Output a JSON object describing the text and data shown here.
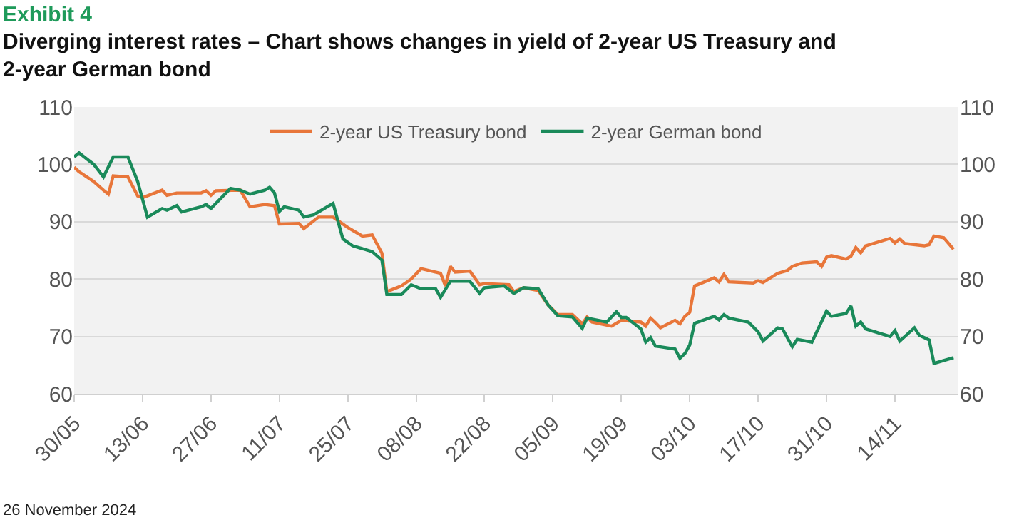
{
  "chart_data": {
    "type": "line",
    "title": "Exhibit 4",
    "subtitle": "Diverging interest rates – Chart shows changes in yield of 2-year US Treasury and 2-year German bond",
    "annotations": [
      "26 November 2024"
    ],
    "series": [
      {
        "name": "2-year US Treasury bond",
        "color": "#e8763a",
        "x": [
          "2024-05-30",
          "2024-05-31",
          "2024-06-03",
          "2024-06-05",
          "2024-06-06",
          "2024-06-07",
          "2024-06-10",
          "2024-06-12",
          "2024-06-13",
          "2024-06-17",
          "2024-06-18",
          "2024-06-20",
          "2024-06-25",
          "2024-06-26",
          "2024-06-27",
          "2024-06-28",
          "2024-07-03",
          "2024-07-05",
          "2024-07-08",
          "2024-07-10",
          "2024-07-11",
          "2024-07-15",
          "2024-07-16",
          "2024-07-19",
          "2024-07-22",
          "2024-07-25",
          "2024-07-28",
          "2024-07-30",
          "2024-08-01",
          "2024-08-02",
          "2024-08-05",
          "2024-08-07",
          "2024-08-09",
          "2024-08-13",
          "2024-08-14",
          "2024-08-15",
          "2024-08-16",
          "2024-08-19",
          "2024-08-21",
          "2024-08-22",
          "2024-08-27",
          "2024-08-28",
          "2024-08-30",
          "2024-09-02",
          "2024-09-04",
          "2024-09-06",
          "2024-09-09",
          "2024-09-11",
          "2024-09-12",
          "2024-09-13",
          "2024-09-17",
          "2024-09-19",
          "2024-09-23",
          "2024-09-24",
          "2024-09-25",
          "2024-09-26",
          "2024-09-27",
          "2024-09-30",
          "2024-10-01",
          "2024-10-02",
          "2024-10-03",
          "2024-10-04",
          "2024-10-08",
          "2024-10-09",
          "2024-10-10",
          "2024-10-11",
          "2024-10-16",
          "2024-10-17",
          "2024-10-18",
          "2024-10-21",
          "2024-10-23",
          "2024-10-24",
          "2024-10-26",
          "2024-10-29",
          "2024-10-30",
          "2024-10-31",
          "2024-11-01",
          "2024-11-04",
          "2024-11-05",
          "2024-11-06",
          "2024-11-07",
          "2024-11-08",
          "2024-11-13",
          "2024-11-14",
          "2024-11-15",
          "2024-11-16",
          "2024-11-20",
          "2024-11-21",
          "2024-11-22",
          "2024-11-24",
          "2024-11-26"
        ],
        "values": [
          99.5,
          98.7,
          97,
          95.5,
          94.8,
          98,
          97.8,
          94.5,
          94.2,
          95.5,
          94.6,
          95,
          95,
          95.4,
          94.6,
          95.4,
          95.5,
          92.6,
          93,
          92.8,
          89.6,
          89.7,
          88.8,
          90.8,
          90.8,
          89,
          87.5,
          87.7,
          84.5,
          77.8,
          78.8,
          80,
          81.8,
          81,
          78.8,
          82.2,
          81.2,
          81.4,
          79,
          79.2,
          79,
          77.8,
          78.5,
          78,
          75.5,
          73.8,
          73.8,
          72.2,
          73.4,
          72.5,
          71.8,
          72.8,
          72.5,
          71.8,
          73.2,
          72.4,
          71.5,
          72.8,
          72.2,
          73.5,
          74.2,
          78.8,
          80.2,
          79.5,
          80.8,
          79.5,
          79.3,
          79.7,
          79.4,
          81,
          81.5,
          82.2,
          82.8,
          83,
          82.2,
          83.8,
          84.1,
          83.5,
          84,
          85.5,
          84.6,
          85.8,
          87.1,
          86.3,
          87,
          86.2,
          85.8,
          86,
          87.5,
          87.2,
          85.2
        ]
      },
      {
        "name": "2-year German bond",
        "color": "#1a8a5a",
        "x": [
          "2024-05-30",
          "2024-05-31",
          "2024-06-03",
          "2024-06-05",
          "2024-06-07",
          "2024-06-10",
          "2024-06-12",
          "2024-06-14",
          "2024-06-17",
          "2024-06-18",
          "2024-06-20",
          "2024-06-21",
          "2024-06-25",
          "2024-06-26",
          "2024-06-27",
          "2024-07-01",
          "2024-07-03",
          "2024-07-05",
          "2024-07-08",
          "2024-07-09",
          "2024-07-10",
          "2024-07-11",
          "2024-07-12",
          "2024-07-15",
          "2024-07-16",
          "2024-07-18",
          "2024-07-22",
          "2024-07-24",
          "2024-07-26",
          "2024-07-30",
          "2024-08-01",
          "2024-08-02",
          "2024-08-05",
          "2024-08-07",
          "2024-08-09",
          "2024-08-12",
          "2024-08-13",
          "2024-08-15",
          "2024-08-19",
          "2024-08-21",
          "2024-08-22",
          "2024-08-26",
          "2024-08-28",
          "2024-08-30",
          "2024-09-02",
          "2024-09-04",
          "2024-09-06",
          "2024-09-09",
          "2024-09-11",
          "2024-09-12",
          "2024-09-16",
          "2024-09-18",
          "2024-09-19",
          "2024-09-20",
          "2024-09-23",
          "2024-09-24",
          "2024-09-25",
          "2024-09-26",
          "2024-09-27",
          "2024-09-30",
          "2024-10-01",
          "2024-10-02",
          "2024-10-03",
          "2024-10-04",
          "2024-10-08",
          "2024-10-09",
          "2024-10-10",
          "2024-10-11",
          "2024-10-15",
          "2024-10-17",
          "2024-10-18",
          "2024-10-21",
          "2024-10-22",
          "2024-10-24",
          "2024-10-25",
          "2024-10-28",
          "2024-10-31",
          "2024-11-01",
          "2024-11-04",
          "2024-11-05",
          "2024-11-06",
          "2024-11-07",
          "2024-11-08",
          "2024-11-13",
          "2024-11-14",
          "2024-11-15",
          "2024-11-18",
          "2024-11-19",
          "2024-11-21",
          "2024-11-22",
          "2024-11-26"
        ],
        "values": [
          101.3,
          102,
          100,
          97.8,
          101.3,
          101.3,
          97,
          90.8,
          92.3,
          92,
          92.8,
          91.7,
          92.6,
          93,
          92.3,
          95.8,
          95.5,
          94.8,
          95.5,
          96,
          95,
          91.8,
          92.6,
          92,
          90.8,
          91.2,
          93.2,
          87,
          85.8,
          84.8,
          83.3,
          77.3,
          77.3,
          79,
          78.3,
          78.3,
          76.8,
          79.6,
          79.6,
          77.5,
          78.5,
          78.8,
          77.5,
          78.5,
          78.3,
          75.5,
          73.6,
          73.4,
          71.4,
          73.2,
          72.5,
          74.3,
          73.3,
          73.3,
          71.3,
          69,
          69.8,
          68.3,
          68.2,
          67.8,
          66.2,
          67,
          68.5,
          72.3,
          73.5,
          72.9,
          73.8,
          73.2,
          72.5,
          70.8,
          69.2,
          71.5,
          71.3,
          68.2,
          69.5,
          69,
          74.4,
          73.5,
          74,
          75.3,
          71.8,
          72.5,
          71.3,
          70,
          71,
          69.2,
          71.5,
          70.2,
          69.4,
          65.3,
          66.3
        ]
      }
    ],
    "xlim": [
      "2024-05-30",
      "2024-11-27"
    ],
    "xticks": [
      {
        "value": "2024-05-30",
        "label": "30/05"
      },
      {
        "value": "2024-06-13",
        "label": "13/06"
      },
      {
        "value": "2024-06-27",
        "label": "27/06"
      },
      {
        "value": "2024-07-11",
        "label": "11/07"
      },
      {
        "value": "2024-07-25",
        "label": "25/07"
      },
      {
        "value": "2024-08-08",
        "label": "08/08"
      },
      {
        "value": "2024-08-22",
        "label": "22/08"
      },
      {
        "value": "2024-09-05",
        "label": "05/09"
      },
      {
        "value": "2024-09-19",
        "label": "19/09"
      },
      {
        "value": "2024-10-03",
        "label": "03/10"
      },
      {
        "value": "2024-10-17",
        "label": "17/10"
      },
      {
        "value": "2024-10-31",
        "label": "31/10"
      },
      {
        "value": "2024-11-14",
        "label": "14/11"
      }
    ],
    "ylim": [
      60,
      110
    ],
    "yticks": [
      60,
      70,
      80,
      90,
      100,
      110
    ],
    "y2lim": [
      60,
      110
    ],
    "y2ticks": [
      60,
      70,
      80,
      90,
      100,
      110
    ],
    "grid": "y",
    "legend": "top",
    "marker": "none",
    "line_style": "solid"
  }
}
